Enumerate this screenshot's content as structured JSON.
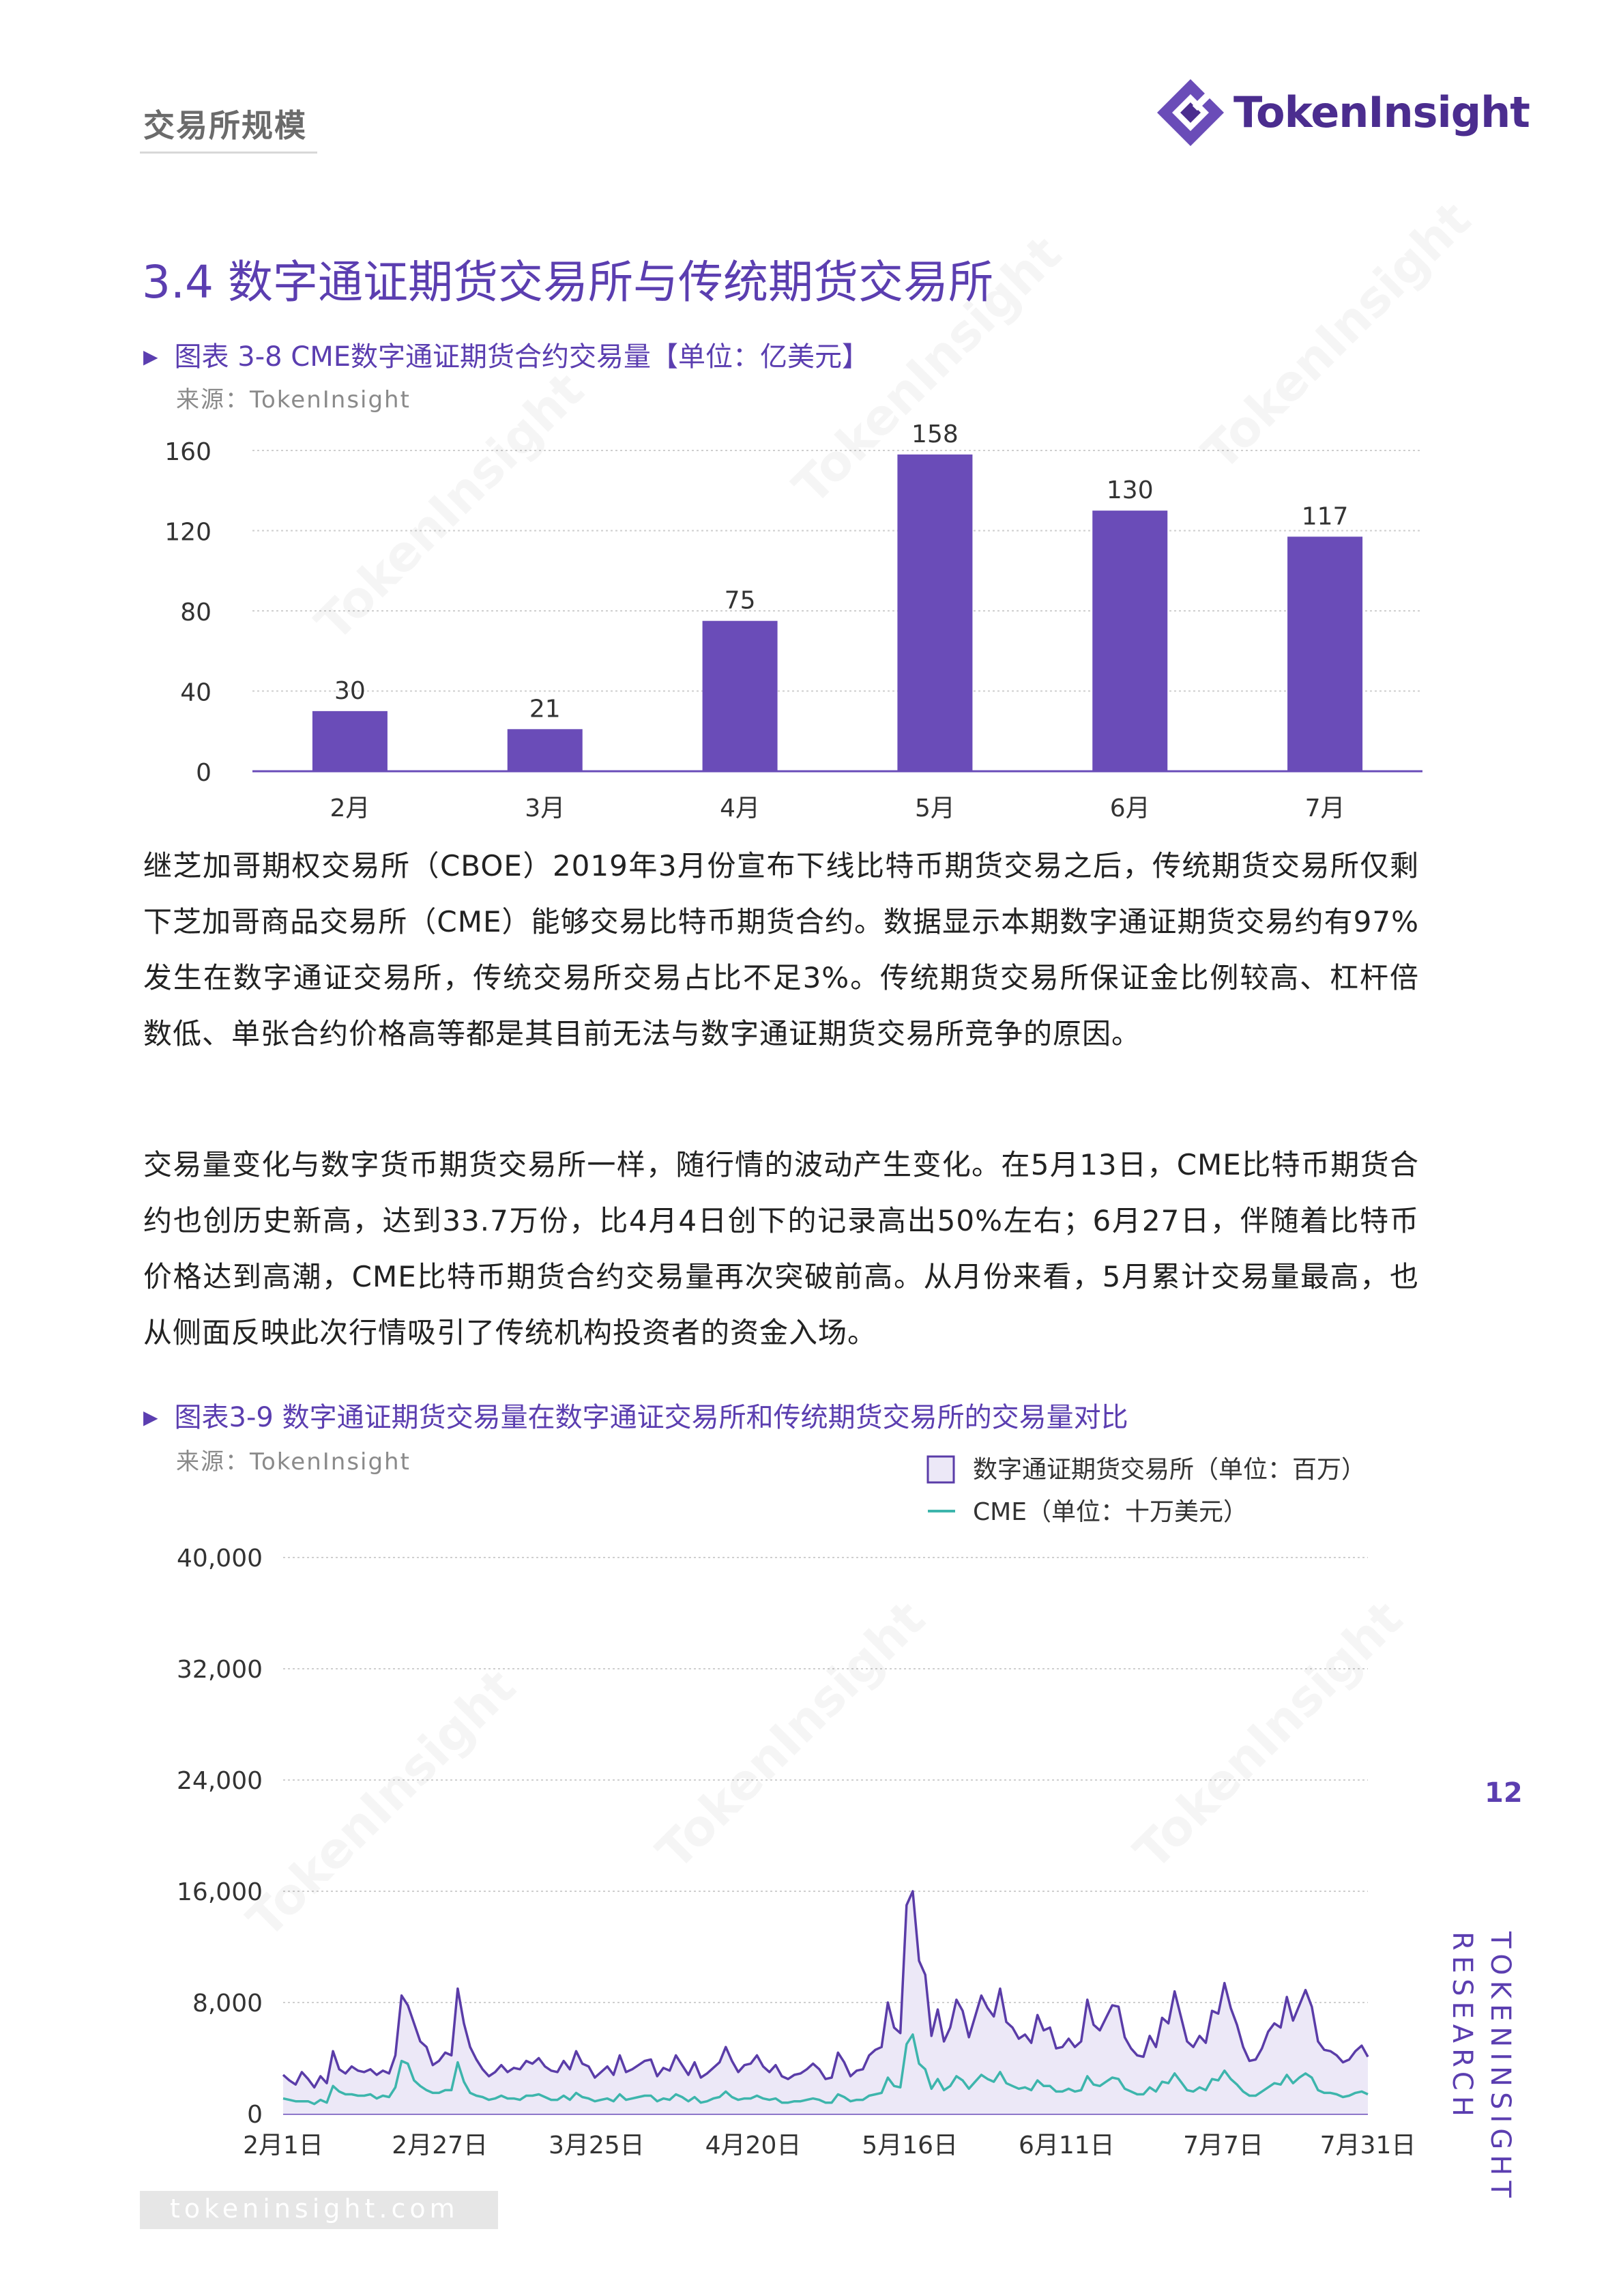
{
  "header": {
    "section": "交易所规模",
    "logo_text": "TokenInsight"
  },
  "section_title": "3.4 数字通证期货交易所与传统期货交易所",
  "figure1": {
    "title": "图表 3-8 CME数字通证期货合约交易量【单位：亿美元】",
    "source": "来源：TokenInsight"
  },
  "paragraphs": [
    "继芝加哥期权交易所（CBOE）2019年3月份宣布下线比特币期货交易之后，传统期货交易所仅剩下芝加哥商品交易所（CME）能够交易比特币期货合约。数据显示本期数字通证期货交易约有97%发生在数字通证交易所，传统交易所交易占比不足3%。传统期货交易所保证金比例较高、杠杆倍数低、单张合约价格高等都是其目前无法与数字通证期货交易所竞争的原因。",
    "交易量变化与数字货币期货交易所一样，随行情的波动产生变化。在5月13日，CME比特币期货合约也创历史新高，达到33.7万份，比4月4日创下的记录高出50%左右；6月27日，伴随着比特币价格达到高潮，CME比特币期货合约交易量再次突破前高。从月份来看，5月累计交易量最高，也从侧面反映此次行情吸引了传统机构投资者的资金入场。"
  ],
  "figure2": {
    "title": "图表3-9 数字通证期货交易量在数字通证交易所和传统期货交易所的交易量对比",
    "source": "来源：TokenInsight"
  },
  "chart_data": [
    {
      "type": "bar",
      "categories": [
        "2月",
        "3月",
        "4月",
        "5月",
        "6月",
        "7月"
      ],
      "values": [
        30,
        21,
        75,
        158,
        130,
        117
      ],
      "yticks": [
        0,
        40,
        80,
        120,
        160
      ],
      "ylim": [
        0,
        160
      ],
      "grid": true,
      "color": "#6a4cb8"
    },
    {
      "type": "line",
      "x_ticks": [
        "2月1日",
        "2月27日",
        "3月25日",
        "4月20日",
        "5月16日",
        "6月11日",
        "7月7日",
        "7月31日"
      ],
      "x_tick_days": [
        0,
        26,
        52,
        78,
        104,
        130,
        156,
        180
      ],
      "yticks": [
        "0",
        "8,000",
        "16,000",
        "24,000",
        "32,000",
        "40,000"
      ],
      "ylim": [
        0,
        40000
      ],
      "grid": true,
      "legend_position": "top-right",
      "series": [
        {
          "name": "数字通证期货交易所（单位：百万）",
          "style": "area",
          "color": "#5a3ca8",
          "fill": "#ece8f7",
          "values": [
            2800,
            2400,
            2100,
            3000,
            2500,
            1900,
            2700,
            2200,
            4500,
            3200,
            2900,
            3400,
            3100,
            3000,
            3200,
            2800,
            3100,
            2900,
            4200,
            8500,
            7800,
            6500,
            5200,
            4800,
            3500,
            3800,
            4400,
            4200,
            9000,
            6500,
            4800,
            3900,
            3200,
            2700,
            3000,
            3500,
            3000,
            3300,
            3200,
            3800,
            3600,
            4000,
            3400,
            3100,
            3000,
            3800,
            3200,
            4500,
            3600,
            3400,
            2600,
            3000,
            3400,
            2800,
            4200,
            3000,
            3200,
            3500,
            3800,
            3900,
            2700,
            3300,
            3100,
            4200,
            3500,
            2800,
            3700,
            2600,
            2900,
            3300,
            3700,
            4800,
            3800,
            3000,
            3500,
            3600,
            4200,
            3400,
            3000,
            3500,
            2700,
            2500,
            2800,
            2900,
            3200,
            3600,
            3200,
            2500,
            2600,
            4400,
            3700,
            2700,
            3100,
            3200,
            4200,
            4600,
            4800,
            8000,
            6200,
            5800,
            15000,
            16000,
            11000,
            10000,
            5600,
            7500,
            5200,
            6200,
            8200,
            7400,
            5500,
            7000,
            8500,
            7600,
            7000,
            9000,
            6600,
            6200,
            5400,
            5700,
            5100,
            7100,
            6000,
            6200,
            4700,
            4800,
            5400,
            4800,
            5200,
            8200,
            6400,
            6000,
            6900,
            7800,
            7700,
            5500,
            4700,
            4200,
            4100,
            5600,
            4800,
            6900,
            6500,
            8800,
            7000,
            5200,
            4800,
            5600,
            5100,
            7400,
            7200,
            9400,
            7600,
            6400,
            4800,
            3800,
            3900,
            4700,
            5900,
            6500,
            6200,
            8400,
            6700,
            7800,
            8900,
            7700,
            5200,
            4600,
            4500,
            4200,
            3700,
            3900,
            4500,
            4900,
            4100
          ]
        },
        {
          "name": "CME（单位：十万美元）",
          "style": "line",
          "color": "#3db5ac",
          "values": [
            1100,
            1000,
            900,
            900,
            900,
            700,
            1000,
            800,
            2000,
            1600,
            1400,
            1400,
            1300,
            1300,
            1400,
            1100,
            1300,
            1200,
            1900,
            3800,
            3600,
            2400,
            2000,
            1700,
            1500,
            1500,
            1700,
            1700,
            3700,
            2300,
            1500,
            1300,
            1200,
            1000,
            1100,
            1300,
            1100,
            1100,
            1000,
            1300,
            1300,
            1400,
            1200,
            1000,
            1000,
            1300,
            1000,
            1500,
            1200,
            1100,
            900,
            1000,
            1100,
            900,
            1400,
            1000,
            1100,
            1200,
            1300,
            1300,
            900,
            1100,
            1000,
            1400,
            1200,
            900,
            1200,
            800,
            900,
            1100,
            1200,
            1600,
            1200,
            1000,
            1100,
            1100,
            1300,
            1100,
            1000,
            1100,
            800,
            800,
            900,
            900,
            1000,
            1100,
            1000,
            800,
            800,
            1400,
            1200,
            900,
            1000,
            1000,
            1300,
            1400,
            1500,
            2600,
            2000,
            1900,
            5000,
            5700,
            3600,
            3200,
            1800,
            2500,
            1700,
            2000,
            2700,
            2400,
            1800,
            2300,
            2800,
            2500,
            2300,
            3000,
            2200,
            2000,
            1800,
            1900,
            1700,
            2400,
            2000,
            2000,
            1600,
            1600,
            1800,
            1600,
            1700,
            2700,
            2100,
            2000,
            2300,
            2600,
            2500,
            1800,
            1600,
            1400,
            1400,
            1900,
            1600,
            2300,
            2200,
            2900,
            2300,
            1700,
            1600,
            1900,
            1700,
            2500,
            2400,
            3100,
            2500,
            2100,
            1600,
            1300,
            1300,
            1600,
            1900,
            2200,
            2100,
            2800,
            2200,
            2600,
            2900,
            2600,
            1700,
            1500,
            1500,
            1400,
            1200,
            1300,
            1500,
            1600,
            1400
          ]
        }
      ]
    }
  ],
  "page_number": "12",
  "side_brand": {
    "line1": "TOKENINSIGHT",
    "line2": "RESEARCH"
  },
  "footer_url": "tokeninsight.com"
}
